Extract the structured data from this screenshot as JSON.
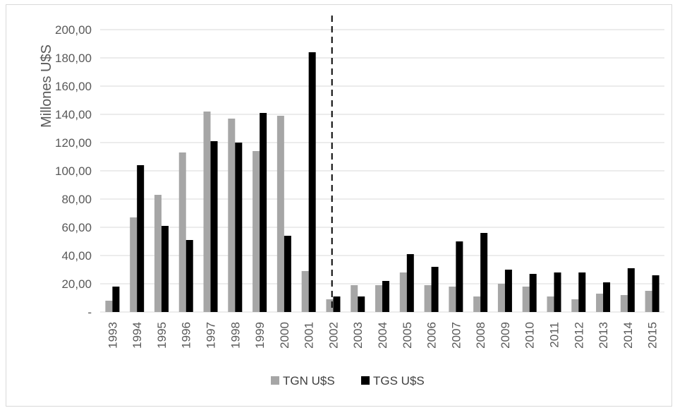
{
  "chart_data": {
    "type": "bar",
    "title": "",
    "xlabel": "",
    "ylabel": "Millones U$S",
    "ylim": [
      0,
      200
    ],
    "yticks": [
      0,
      20,
      40,
      60,
      80,
      100,
      120,
      140,
      160,
      180,
      200
    ],
    "ytick_labels": [
      "-",
      "20,00",
      "40,00",
      "60,00",
      "80,00",
      "100,00",
      "120,00",
      "140,00",
      "160,00",
      "180,00",
      "200,00"
    ],
    "grid": true,
    "legend_position": "bottom",
    "categories": [
      "1993",
      "1994",
      "1995",
      "1996",
      "1997",
      "1998",
      "1999",
      "2000",
      "2001",
      "2002",
      "2003",
      "2004",
      "2005",
      "2006",
      "2007",
      "2008",
      "2009",
      "2010",
      "2011",
      "2012",
      "2013",
      "2014",
      "2015"
    ],
    "series": [
      {
        "name": "TGN U$S",
        "color": "#a6a6a6",
        "values": [
          8,
          67,
          83,
          113,
          142,
          137,
          114,
          139,
          29,
          9,
          19,
          19,
          28,
          19,
          18,
          11,
          20,
          18,
          11,
          9,
          13,
          12,
          15
        ]
      },
      {
        "name": "TGS U$S",
        "color": "#000000",
        "values": [
          18,
          104,
          61,
          51,
          121,
          120,
          141,
          54,
          184,
          11,
          11,
          22,
          41,
          32,
          50,
          56,
          30,
          27,
          28,
          28,
          21,
          31,
          26
        ]
      }
    ],
    "vertical_marker": {
      "between": [
        "2002",
        "2003"
      ],
      "style": "dashed"
    }
  }
}
